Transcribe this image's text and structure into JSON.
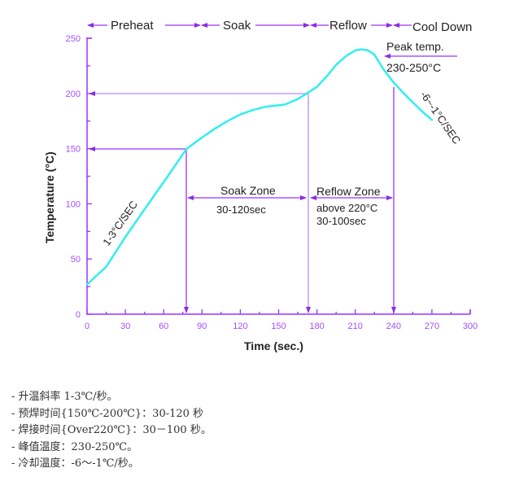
{
  "chart_data": {
    "type": "line",
    "title": "",
    "xlabel": "Time (sec.)",
    "ylabel": "Temperature (°C)",
    "xlim": [
      0,
      300
    ],
    "ylim": [
      0,
      250
    ],
    "xticks": [
      0,
      30,
      60,
      90,
      120,
      150,
      180,
      210,
      240,
      270,
      300
    ],
    "yticks": [
      0,
      50,
      100,
      150,
      200,
      250
    ],
    "grid": false,
    "legend": null,
    "series": [
      {
        "name": "Reflow temperature profile",
        "color": "#33eeee",
        "x": [
          0,
          15,
          30,
          48,
          65,
          78,
          90,
          100,
          110,
          120,
          130,
          140,
          155,
          165,
          172,
          180,
          188,
          195,
          203,
          210,
          215,
          220,
          225,
          232,
          240,
          248,
          255,
          262,
          270
        ],
        "y": [
          27,
          43,
          70,
          100,
          128,
          150,
          160,
          168,
          175,
          181,
          185,
          188,
          190,
          195,
          200,
          206,
          216,
          226,
          234,
          239,
          240,
          239,
          235,
          222,
          210,
          200,
          192,
          184,
          176
        ]
      }
    ],
    "phases": [
      {
        "label": "Preheat",
        "x_start": 0,
        "x_end": 78
      },
      {
        "label": "Soak",
        "x_start": 78,
        "x_end": 172
      },
      {
        "label": "Reflow",
        "x_start": 172,
        "x_end": 240
      },
      {
        "label": "Cool Down",
        "x_start": 240,
        "x_end": 300
      }
    ],
    "reference_lines": [
      {
        "type": "horizontal",
        "y": 150,
        "x_end": 78
      },
      {
        "type": "horizontal",
        "y": 200,
        "x_end": 172
      },
      {
        "type": "vertical",
        "x": 78,
        "y_top": 150
      },
      {
        "type": "vertical",
        "x": 172,
        "y_top": 200
      },
      {
        "type": "vertical",
        "x": 240,
        "y_top": 206
      }
    ],
    "annotations": [
      {
        "text": "1-3°C/SEC",
        "x": 25,
        "y": 85,
        "rotation": -55
      },
      {
        "text": "Soak Zone",
        "x": 125,
        "y": 110
      },
      {
        "text": "30-120sec",
        "x": 125,
        "y": 92
      },
      {
        "text": "Reflow Zone",
        "x": 205,
        "y": 108
      },
      {
        "text": "above 220°C",
        "x": 188,
        "y": 95
      },
      {
        "text": "30-100sec",
        "x": 188,
        "y": 83
      },
      {
        "text": "Peak temp.",
        "x": 250,
        "y": 242
      },
      {
        "text": "230-250°C",
        "x": 250,
        "y": 225
      },
      {
        "text": "-6~-1°C/SEC",
        "x": 268,
        "y": 180,
        "rotation": 55
      }
    ]
  },
  "phases": {
    "preheat": "Preheat",
    "soak": "Soak",
    "reflow": "Reflow",
    "cool_down": "Cool Down"
  },
  "axes": {
    "x_title": "Time (sec.)",
    "y_title": "Temperature (°C)",
    "x_ticks": [
      "0",
      "30",
      "60",
      "90",
      "120",
      "150",
      "180",
      "210",
      "240",
      "270",
      "300"
    ],
    "y_ticks": [
      "0",
      "50",
      "100",
      "150",
      "200",
      "250"
    ]
  },
  "annotations": {
    "ramp_rate": "1-3°C/SEC",
    "soak_zone": "Soak Zone",
    "soak_time": "30-120sec",
    "reflow_zone": "Reflow Zone",
    "reflow_above": "above 220°C",
    "reflow_time": "30-100sec",
    "peak_label": "Peak temp.",
    "peak_range": "230-250°C",
    "cool_rate": "-6~-1°C/SEC"
  },
  "colors": {
    "axis": "#9933ff",
    "curve": "#33eeee",
    "reference": "#9933ff",
    "text": "#222222"
  },
  "notes": [
    "- 升温斜率 1-3℃/秒。",
    "- 预焊时间{150℃-200℃}：30-120 秒",
    "- 焊接时间{Over220℃}：30－100 秒。",
    "- 峰值温度：230-250℃。",
    "- 冷却温度：-6～-1℃/秒。"
  ]
}
